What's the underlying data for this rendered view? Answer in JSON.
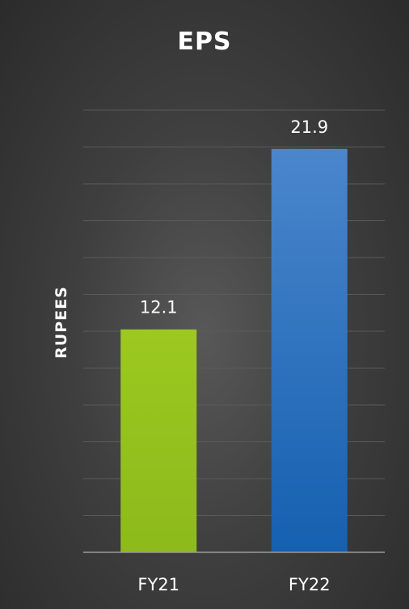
{
  "chart_data": {
    "type": "bar",
    "title": "EPS",
    "xlabel": "",
    "ylabel": "RUPEES",
    "categories": [
      "FY21",
      "FY22"
    ],
    "values": [
      12.1,
      21.9
    ],
    "data_labels": [
      "12.1",
      "21.9"
    ],
    "ylim": [
      0,
      25
    ],
    "grid": true,
    "legend": "none",
    "colors": {
      "FY21": "#95c11f",
      "FY22": "#1f6fc4",
      "gridline": "#5a5a5a",
      "axis": "#9a9a9a"
    }
  }
}
